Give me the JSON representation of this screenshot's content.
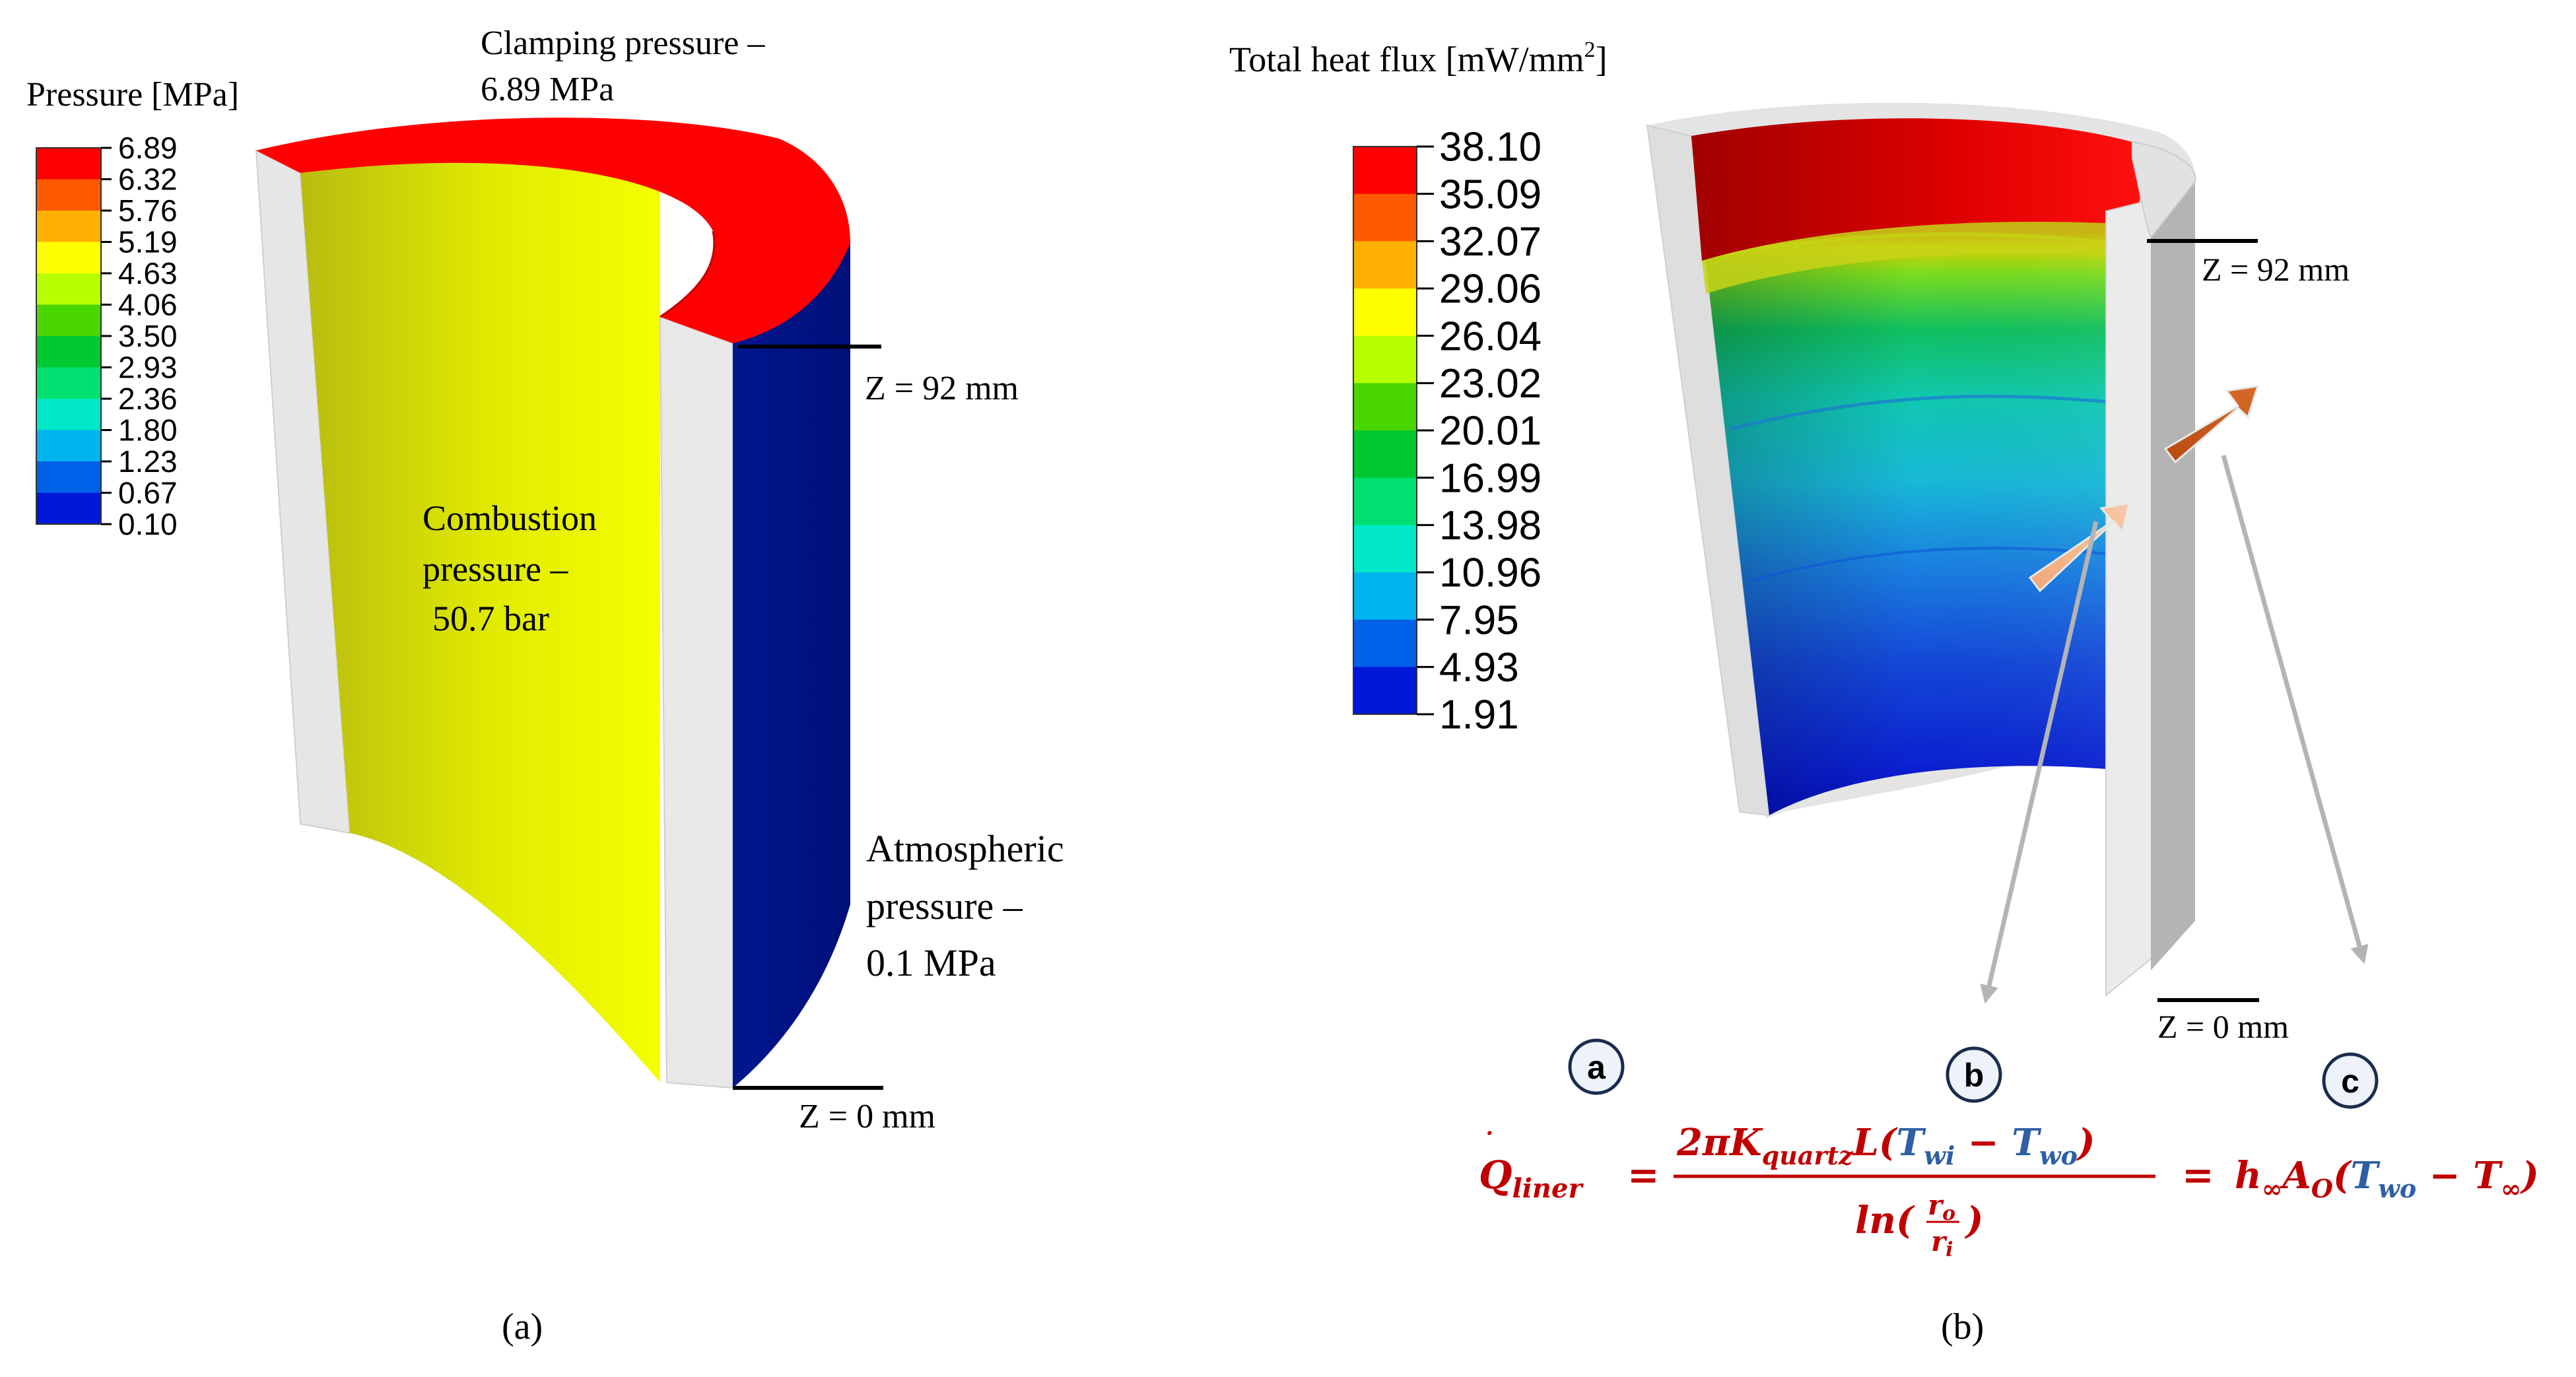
{
  "panel_a": {
    "legend": {
      "title": "Pressure [MPa]",
      "ticks": [
        "6.89",
        "6.32",
        "5.76",
        "5.19",
        "4.63",
        "4.06",
        "3.50",
        "2.93",
        "2.36",
        "1.80",
        "1.23",
        "0.67",
        "0.10"
      ],
      "bands": [
        "#ff0000",
        "#ff5a00",
        "#ffb000",
        "#ffff00",
        "#b8ff00",
        "#4cd600",
        "#00c830",
        "#00e070",
        "#00e8c8",
        "#00b4f0",
        "#0060e8",
        "#0018d8"
      ]
    },
    "annotations": {
      "clamping_line1": "Clamping pressure –",
      "clamping_line2": "6.89 MPa",
      "combustion_line1": "Combustion",
      "combustion_line2": "pressure –",
      "combustion_line3": "50.7 bar",
      "atmospheric_line1": "Atmospheric",
      "atmospheric_line2": "pressure –",
      "atmospheric_line3": "0.1 MPa",
      "z_top": "Z = 92 mm",
      "z_bottom": "Z = 0 mm"
    },
    "colors": {
      "top_rim": "#ff0000",
      "inner_wall": "#e6f000",
      "outer_wall": "#00148c",
      "cut_face": "#e4e4e4"
    },
    "caption": "(a)"
  },
  "panel_b": {
    "legend": {
      "title": "Total heat flux [mW/mm",
      "title_sup": "2",
      "title_end": "]",
      "ticks": [
        "38.10",
        "35.09",
        "32.07",
        "29.06",
        "26.04",
        "23.02",
        "20.01",
        "16.99",
        "13.98",
        "10.96",
        "7.95",
        "4.93",
        "1.91"
      ],
      "bands": [
        "#ff0000",
        "#ff5a00",
        "#ffb000",
        "#ffff00",
        "#b8ff00",
        "#4cd600",
        "#00c830",
        "#00e070",
        "#00e8c8",
        "#00b4f0",
        "#0060e8",
        "#0018d8"
      ]
    },
    "annotations": {
      "z_top": "Z = 92 mm",
      "z_bottom": "Z = 0 mm",
      "badge_a": "a",
      "badge_b": "b",
      "badge_c": "c"
    },
    "equation": {
      "lhs_Q": "Q",
      "lhs_sub": "liner",
      "equals": "=",
      "num_2pi": "2πK",
      "num_sub": "quartz",
      "num_L": "L(",
      "num_Twi": "T",
      "num_Twi_sub": "wi",
      "num_minus": " − ",
      "num_Two": "T",
      "num_Two_sub": "wo",
      "num_close": ")",
      "den_ln": "ln(",
      "den_ro": "r",
      "den_ro_sub": "o",
      "den_ri": "r",
      "den_ri_sub": "i",
      "den_close": ")",
      "rhs_h": "h",
      "rhs_h_sub": "∞",
      "rhs_A": "A",
      "rhs_A_sub": "O",
      "rhs_open": "(",
      "rhs_Two": "T",
      "rhs_Two_sub": "wo",
      "rhs_minus": " − ",
      "rhs_Tinf": "T",
      "rhs_Tinf_sub": "∞",
      "rhs_close": ")",
      "red": "#c00000",
      "blue": "#2e5fa5"
    },
    "caption": "(b)"
  }
}
